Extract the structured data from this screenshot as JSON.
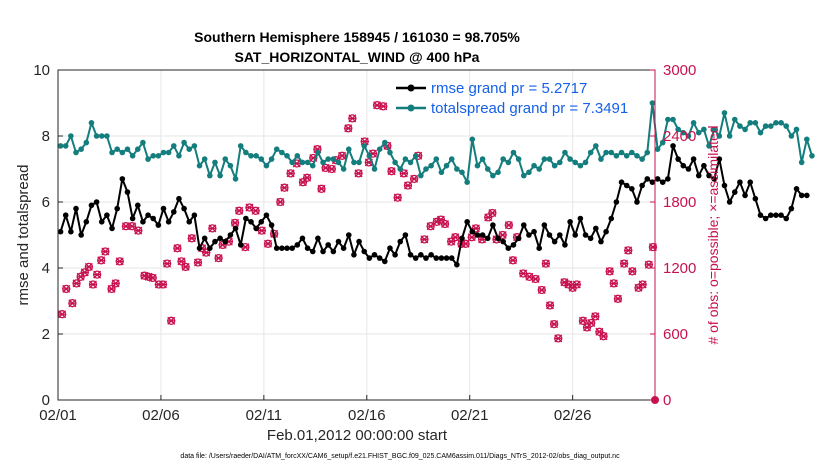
{
  "chart_data": {
    "type": "line",
    "title": "Southern Hemisphere 158945 / 161030 = 98.705%",
    "subtitle": "SAT_HORIZONTAL_WIND @ 400 hPa",
    "xlabel": "Feb.01,2012 00:00:00 start",
    "ylabel": "rmse and totalspread",
    "y2label": "# of obs: o=possible; ×=assimilated",
    "xlim": [
      0,
      29
    ],
    "ylim": [
      0,
      10
    ],
    "y2lim": [
      0,
      3000
    ],
    "xticks": [
      0,
      5,
      10,
      15,
      20,
      25
    ],
    "xticklabels": [
      "02/01",
      "02/06",
      "02/11",
      "02/16",
      "02/21",
      "02/26"
    ],
    "yticks": [
      0,
      2,
      4,
      6,
      8,
      10
    ],
    "y2ticks": [
      0,
      600,
      1200,
      1800,
      2400,
      3000
    ],
    "legend_position": "top-right",
    "series": [
      {
        "name": "rmse grand pr = 5.2717",
        "color": "#000000",
        "x0": 0.125,
        "dx": 0.25,
        "values": [
          5.1,
          5.6,
          5.1,
          5.8,
          5.0,
          5.4,
          5.9,
          6.0,
          5.4,
          5.6,
          5.2,
          5.8,
          6.7,
          6.3,
          5.5,
          5.9,
          5.4,
          5.6,
          5.5,
          5.3,
          5.8,
          5.4,
          5.7,
          6.1,
          5.8,
          5.4,
          5.6,
          4.6,
          4.9,
          4.6,
          4.8,
          4.9,
          4.8,
          5.0,
          5.2,
          4.7,
          5.5,
          5.4,
          5.2,
          5.4,
          5.6,
          5.3,
          4.6,
          4.6,
          4.6,
          4.6,
          4.7,
          4.9,
          4.6,
          4.5,
          4.9,
          4.5,
          4.7,
          4.5,
          4.8,
          4.6,
          5.0,
          4.4,
          4.8,
          4.5,
          4.3,
          4.4,
          4.3,
          4.2,
          4.6,
          4.4,
          4.8,
          5.0,
          4.4,
          4.3,
          4.4,
          4.3,
          4.4,
          4.3,
          4.3,
          4.3,
          4.3,
          4.1,
          4.9,
          5.4,
          5.1,
          5.0,
          5.0,
          4.9,
          5.3,
          4.9,
          4.8,
          4.6,
          4.7,
          4.9,
          5.3,
          5.0,
          5.1,
          4.6,
          5.3,
          5.0,
          4.8,
          5.0,
          4.7,
          5.4,
          5.0,
          5.5,
          5.0,
          4.9,
          5.2,
          4.8,
          5.1,
          5.5,
          6.0,
          6.6,
          6.5,
          6.4,
          6.0,
          6.5,
          6.7,
          6.6,
          6.7,
          6.6,
          6.7,
          7.7,
          7.3,
          7.1,
          7.0,
          7.3,
          6.8,
          7.1,
          6.8,
          6.7,
          7.3,
          6.5,
          6.0,
          6.3,
          6.6,
          6.2,
          6.6,
          6.1,
          5.6,
          5.5,
          5.6,
          5.6,
          5.6,
          5.5,
          5.8,
          6.4,
          6.2,
          6.2
        ]
      },
      {
        "name": "totalspread grand pr = 7.3491",
        "color": "#147d7d",
        "x0": 0.125,
        "dx": 0.25,
        "values": [
          7.7,
          7.7,
          8.0,
          7.5,
          7.6,
          7.8,
          8.4,
          8.0,
          8.0,
          8.0,
          7.5,
          7.6,
          7.5,
          7.6,
          7.4,
          7.6,
          7.8,
          7.3,
          7.4,
          7.4,
          7.5,
          7.5,
          7.7,
          7.4,
          7.8,
          7.6,
          7.7,
          7.1,
          7.3,
          6.8,
          7.2,
          6.8,
          7.3,
          7.1,
          6.7,
          7.7,
          7.5,
          7.4,
          7.4,
          7.3,
          7.1,
          7.3,
          7.6,
          7.5,
          7.4,
          7.2,
          7.4,
          7.2,
          7.2,
          7.1,
          7.5,
          7.2,
          7.3,
          7.3,
          7.2,
          7.0,
          7.6,
          7.2,
          7.2,
          7.7,
          7.4,
          7.0,
          7.6,
          7.8,
          7.5,
          7.2,
          7.0,
          7.3,
          7.2,
          7.4,
          6.8,
          7.0,
          7.1,
          7.3,
          6.9,
          7.1,
          7.3,
          7.0,
          6.9,
          6.6,
          7.9,
          7.1,
          7.3,
          7.0,
          6.8,
          6.9,
          7.3,
          7.2,
          7.5,
          7.3,
          6.8,
          6.9,
          7.1,
          7.0,
          7.3,
          7.3,
          7.1,
          7.2,
          7.5,
          7.3,
          7.2,
          7.1,
          7.2,
          7.5,
          7.7,
          7.3,
          7.5,
          7.5,
          7.4,
          7.5,
          7.4,
          7.5,
          7.4,
          7.3,
          7.5,
          9.0,
          7.6,
          7.8,
          8.5,
          8.5,
          8.2,
          8.1,
          8.0,
          8.4,
          8.1,
          8.2,
          7.7,
          8.2,
          8.0,
          8.7,
          8.0,
          8.5,
          8.3,
          8.2,
          8.4,
          8.4,
          8.1,
          8.3,
          8.3,
          8.4,
          8.4,
          8.3,
          8.0,
          8.2,
          7.2,
          7.9,
          7.4
        ]
      }
    ],
    "obs_possible": [
      [
        0.2,
        780
      ],
      [
        0.4,
        1010
      ],
      [
        0.7,
        880
      ],
      [
        0.9,
        1060
      ],
      [
        1.1,
        1120
      ],
      [
        1.3,
        1160
      ],
      [
        1.5,
        1210
      ],
      [
        1.7,
        1050
      ],
      [
        1.9,
        1140
      ],
      [
        2.1,
        1270
      ],
      [
        2.3,
        1350
      ],
      [
        2.6,
        1010
      ],
      [
        2.8,
        1060
      ],
      [
        3.0,
        1260
      ],
      [
        3.3,
        1580
      ],
      [
        3.6,
        1580
      ],
      [
        3.9,
        1540
      ],
      [
        4.2,
        1130
      ],
      [
        4.4,
        1120
      ],
      [
        4.6,
        1110
      ],
      [
        4.9,
        1050
      ],
      [
        5.1,
        1050
      ],
      [
        5.3,
        1240
      ],
      [
        5.5,
        720
      ],
      [
        5.8,
        1380
      ],
      [
        6.0,
        1260
      ],
      [
        6.2,
        1210
      ],
      [
        6.5,
        1470
      ],
      [
        6.8,
        1250
      ],
      [
        7.0,
        1380
      ],
      [
        7.2,
        1340
      ],
      [
        7.5,
        1560
      ],
      [
        7.8,
        1290
      ],
      [
        8.0,
        1410
      ],
      [
        8.3,
        1440
      ],
      [
        8.6,
        1610
      ],
      [
        8.8,
        1720
      ],
      [
        9.1,
        1390
      ],
      [
        9.3,
        1750
      ],
      [
        9.6,
        1720
      ],
      [
        9.9,
        1540
      ],
      [
        10.2,
        1420
      ],
      [
        10.5,
        1510
      ],
      [
        10.8,
        1800
      ],
      [
        11.0,
        1930
      ],
      [
        11.3,
        2060
      ],
      [
        11.6,
        2150
      ],
      [
        11.9,
        1980
      ],
      [
        12.1,
        2020
      ],
      [
        12.4,
        2200
      ],
      [
        12.6,
        2280
      ],
      [
        12.8,
        1920
      ],
      [
        13.0,
        2110
      ],
      [
        13.3,
        2100
      ],
      [
        13.5,
        2180
      ],
      [
        13.8,
        2220
      ],
      [
        14.1,
        2470
      ],
      [
        14.3,
        2560
      ],
      [
        14.6,
        2060
      ],
      [
        14.9,
        2350
      ],
      [
        15.1,
        2160
      ],
      [
        15.3,
        2240
      ],
      [
        15.5,
        2680
      ],
      [
        15.8,
        2670
      ],
      [
        16.0,
        2310
      ],
      [
        16.2,
        2080
      ],
      [
        16.5,
        1840
      ],
      [
        16.8,
        2060
      ],
      [
        17.0,
        1950
      ],
      [
        17.3,
        2010
      ],
      [
        17.5,
        2220
      ],
      [
        17.8,
        1460
      ],
      [
        18.1,
        1580
      ],
      [
        18.4,
        1620
      ],
      [
        18.6,
        1640
      ],
      [
        18.8,
        1600
      ],
      [
        19.1,
        1440
      ],
      [
        19.3,
        1480
      ],
      [
        19.6,
        1420
      ],
      [
        19.8,
        1420
      ],
      [
        20.1,
        1480
      ],
      [
        20.3,
        1560
      ],
      [
        20.6,
        1460
      ],
      [
        20.9,
        1660
      ],
      [
        21.1,
        1700
      ],
      [
        21.3,
        1460
      ],
      [
        21.6,
        1500
      ],
      [
        21.9,
        1590
      ],
      [
        22.1,
        1270
      ],
      [
        22.3,
        1480
      ],
      [
        22.6,
        1150
      ],
      [
        22.9,
        1120
      ],
      [
        23.2,
        1100
      ],
      [
        23.5,
        1000
      ],
      [
        23.7,
        1240
      ],
      [
        23.9,
        860
      ],
      [
        24.1,
        690
      ],
      [
        24.3,
        560
      ],
      [
        24.6,
        1070
      ],
      [
        24.8,
        1050
      ],
      [
        25.0,
        1020
      ],
      [
        25.2,
        1050
      ],
      [
        25.5,
        720
      ],
      [
        25.7,
        660
      ],
      [
        25.9,
        700
      ],
      [
        26.1,
        760
      ],
      [
        26.3,
        620
      ],
      [
        26.5,
        580
      ],
      [
        26.8,
        1170
      ],
      [
        27.0,
        1060
      ],
      [
        27.2,
        920
      ],
      [
        27.5,
        1240
      ],
      [
        27.7,
        1360
      ],
      [
        27.9,
        1170
      ],
      [
        28.2,
        1020
      ],
      [
        28.4,
        1050
      ],
      [
        28.7,
        1230
      ],
      [
        28.9,
        1390
      ]
    ],
    "obs_assimilated_note": "same positions as possible (nearly identical counts)"
  },
  "footer": "data file: /Users/raeder/DAI/ATM_forcXX/CAM6_setup/f.e21.FHIST_BGC.f09_025.CAM6assim.011/Diags_NTrS_2012-02/obs_diag_output.nc"
}
